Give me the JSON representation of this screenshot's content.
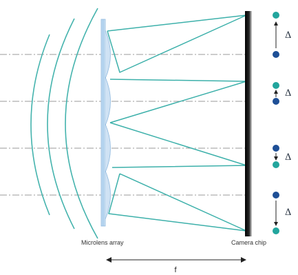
{
  "labels": {
    "microlens": "Microlens array",
    "camera": "Camera chip",
    "focal": "f",
    "delta": "Δ"
  },
  "colors": {
    "wave": "#44b3ad",
    "ray": "#3cb0aa",
    "lens": "#b9d6ee",
    "lens_edge": "#7fb0da",
    "chip": "#141414",
    "dot_teal": "#22a59d",
    "dot_navy": "#1e4f96",
    "axis": "#9a9a9a"
  },
  "spots": [
    {
      "top": "teal",
      "bottom": "navy",
      "direction": "down-to-up"
    },
    {
      "top": "teal",
      "bottom": "navy",
      "direction": "down-to-up"
    },
    {
      "top": "navy",
      "bottom": "teal",
      "direction": "up-to-down"
    },
    {
      "top": "navy",
      "bottom": "teal",
      "direction": "up-to-down"
    }
  ]
}
